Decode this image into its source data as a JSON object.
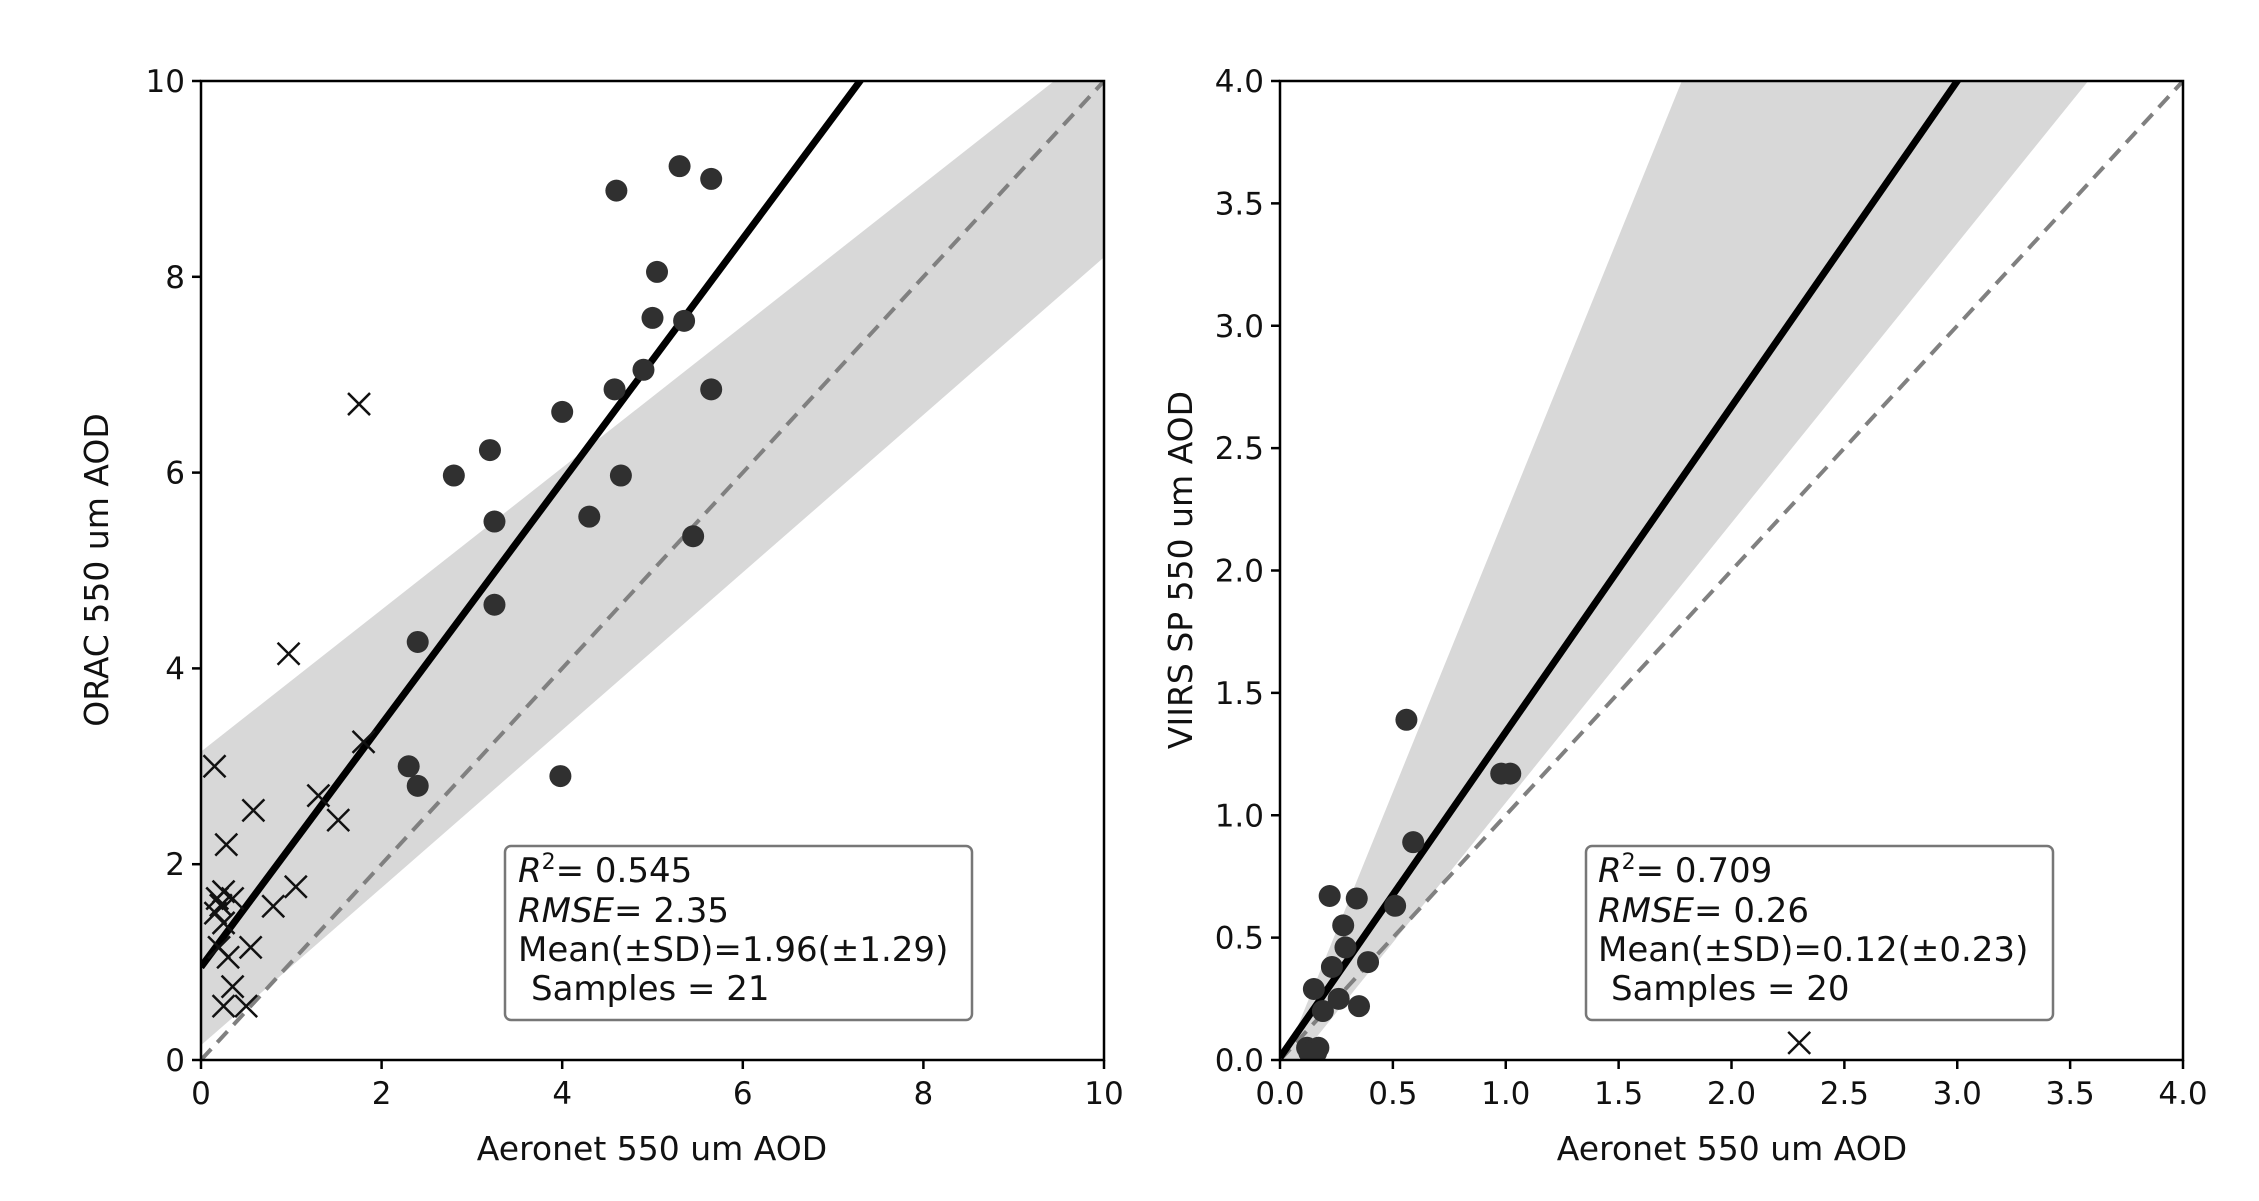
{
  "chart_data": [
    {
      "type": "scatter",
      "xlabel": "Aeronet 550 um AOD",
      "ylabel": "ORAC 550 um AOD",
      "xlim": [
        0,
        10
      ],
      "ylim": [
        0,
        10
      ],
      "xticks": [
        0,
        2,
        4,
        6,
        8,
        10
      ],
      "yticks": [
        0,
        2,
        4,
        6,
        8,
        10
      ],
      "tick_labels_x": [
        "0",
        "2",
        "4",
        "6",
        "8",
        "10"
      ],
      "tick_labels_y": [
        "0",
        "2",
        "4",
        "6",
        "8",
        "10"
      ],
      "one_to_one_line": true,
      "fit": {
        "intercept": 0.95,
        "slope": 1.24,
        "ci_at_x0": [
          0.15,
          3.15
        ],
        "ci_at_xmax": [
          8.2,
          10.4
        ]
      },
      "points_used": {
        "marker": "circle",
        "x": [
          4.6,
          5.3,
          5.65,
          5.05,
          5.0,
          5.35,
          4.9,
          4.58,
          5.65,
          4.0,
          2.8,
          3.2,
          4.65,
          3.25,
          4.3,
          5.45,
          3.25,
          2.4,
          2.3,
          2.4,
          3.98
        ],
        "y": [
          8.88,
          9.13,
          9.0,
          8.05,
          7.58,
          7.55,
          7.05,
          6.85,
          6.85,
          6.62,
          5.97,
          6.23,
          5.97,
          5.5,
          5.55,
          5.35,
          4.65,
          4.27,
          3.0,
          2.8,
          2.9
        ]
      },
      "points_excluded": {
        "marker": "x",
        "x": [
          1.75,
          0.97,
          1.8,
          0.15,
          0.58,
          1.3,
          1.52,
          0.28,
          0.25,
          0.18,
          0.16,
          0.22,
          0.35,
          0.25,
          1.05,
          0.8,
          0.2,
          0.55,
          0.3,
          0.35,
          0.25,
          0.5
        ],
        "y": [
          6.7,
          4.15,
          3.25,
          3.0,
          2.55,
          2.7,
          2.45,
          2.2,
          1.72,
          1.65,
          1.5,
          1.58,
          1.65,
          1.4,
          1.77,
          1.57,
          1.15,
          1.15,
          1.05,
          0.75,
          0.55,
          0.55
        ]
      },
      "stats": {
        "r2_symbol": "R",
        "r2_exp": "2",
        "r2_value": "= 0.545",
        "rmse_label": "RMSE",
        "rmse_value": "= 2.35",
        "mean_line": "Mean(±SD)=1.96(±1.29)",
        "samples_line": "Samples = 21"
      }
    },
    {
      "type": "scatter",
      "xlabel": "Aeronet 550 um AOD",
      "ylabel": "VIIRS SP 550 um AOD",
      "xlim": [
        0.0,
        4.0
      ],
      "ylim": [
        0.0,
        4.0
      ],
      "xticks": [
        0.0,
        0.5,
        1.0,
        1.5,
        2.0,
        2.5,
        3.0,
        3.5,
        4.0
      ],
      "yticks": [
        0.0,
        0.5,
        1.0,
        1.5,
        2.0,
        2.5,
        3.0,
        3.5,
        4.0
      ],
      "tick_labels_x": [
        "0.0",
        "0.5",
        "1.0",
        "1.5",
        "2.0",
        "2.5",
        "3.0",
        "3.5",
        "4.0"
      ],
      "tick_labels_y": [
        "0.0",
        "0.5",
        "1.0",
        "1.5",
        "2.0",
        "2.5",
        "3.0",
        "3.5",
        "4.0"
      ],
      "one_to_one_line": true,
      "fit": {
        "intercept": 0.01,
        "slope": 1.33,
        "ci_upper_through": [
          [
            0.15,
            0.3
          ],
          [
            1.78,
            4.0
          ]
        ],
        "ci_lower_through": [
          [
            0.15,
            0.08
          ],
          [
            3.58,
            4.0
          ]
        ]
      },
      "points_used": {
        "marker": "circle",
        "x": [
          0.56,
          1.02,
          0.98,
          0.59,
          0.51,
          0.22,
          0.34,
          0.28,
          0.29,
          0.15,
          0.23,
          0.39,
          0.35,
          0.26,
          0.19,
          0.12,
          0.17,
          0.15,
          0.13,
          0.16
        ],
        "y": [
          1.39,
          1.17,
          1.17,
          0.89,
          0.63,
          0.67,
          0.66,
          0.55,
          0.46,
          0.29,
          0.38,
          0.4,
          0.22,
          0.25,
          0.2,
          0.05,
          0.05,
          0.04,
          0.03,
          0.03
        ]
      },
      "points_excluded": {
        "marker": "x",
        "x": [
          2.3
        ],
        "y": [
          0.07
        ]
      },
      "stats": {
        "r2_symbol": "R",
        "r2_exp": "2",
        "r2_value": "= 0.709",
        "rmse_label": "RMSE",
        "rmse_value": "= 0.26",
        "mean_line": "Mean(±SD)=0.12(±0.23)",
        "samples_line": "Samples = 20"
      }
    }
  ]
}
